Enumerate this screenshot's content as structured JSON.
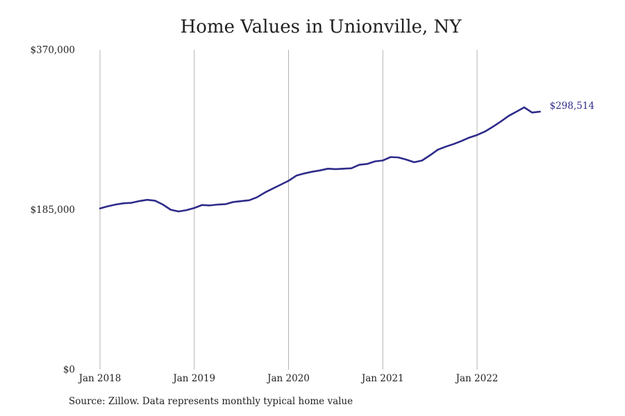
{
  "chart_data": {
    "type": "line",
    "title": "Home Values in Unionville, NY",
    "xlabel": "",
    "ylabel": "",
    "x_tick_labels": [
      "Jan 2018",
      "Jan 2019",
      "Jan 2020",
      "Jan 2021",
      "Jan 2022"
    ],
    "y_tick_labels": [
      "$370,000",
      "$185,000",
      "$0"
    ],
    "ylim": [
      0,
      370000
    ],
    "grid": "vertical lines at each January",
    "legend": "none",
    "series": [
      {
        "color": "#2e2b8a",
        "end_label": "$298,514",
        "x": [
          "2018-01",
          "2018-02",
          "2018-03",
          "2018-04",
          "2018-05",
          "2018-06",
          "2018-07",
          "2018-08",
          "2018-09",
          "2018-10",
          "2018-11",
          "2018-12",
          "2019-01",
          "2019-02",
          "2019-03",
          "2019-04",
          "2019-05",
          "2019-06",
          "2019-07",
          "2019-08",
          "2019-09",
          "2019-10",
          "2019-11",
          "2019-12",
          "2020-01",
          "2020-02",
          "2020-03",
          "2020-04",
          "2020-05",
          "2020-06",
          "2020-07",
          "2020-08",
          "2020-09",
          "2020-10",
          "2020-11",
          "2020-12",
          "2021-01",
          "2021-02",
          "2021-03",
          "2021-04",
          "2021-05",
          "2021-06",
          "2021-07",
          "2021-08",
          "2021-09",
          "2021-10",
          "2021-11",
          "2021-12",
          "2022-01",
          "2022-02",
          "2022-03",
          "2022-04",
          "2022-05",
          "2022-06",
          "2022-07",
          "2022-08",
          "2022-09"
        ],
        "values": [
          186500,
          189000,
          191000,
          192500,
          193000,
          195000,
          196500,
          195500,
          191000,
          185000,
          183000,
          184500,
          187000,
          190500,
          190000,
          191000,
          191500,
          194000,
          195000,
          196000,
          199500,
          205000,
          209500,
          214000,
          218500,
          224500,
          227000,
          229000,
          230500,
          232500,
          232000,
          232500,
          233000,
          237000,
          238000,
          241000,
          242000,
          246000,
          245500,
          243000,
          240000,
          242000,
          248000,
          254500,
          258000,
          261000,
          264500,
          268500,
          271500,
          275500,
          281000,
          287000,
          293500,
          298500,
          303500,
          297500,
          298514
        ]
      }
    ]
  },
  "source_note": "Source: Zillow. Data represents monthly typical home value"
}
